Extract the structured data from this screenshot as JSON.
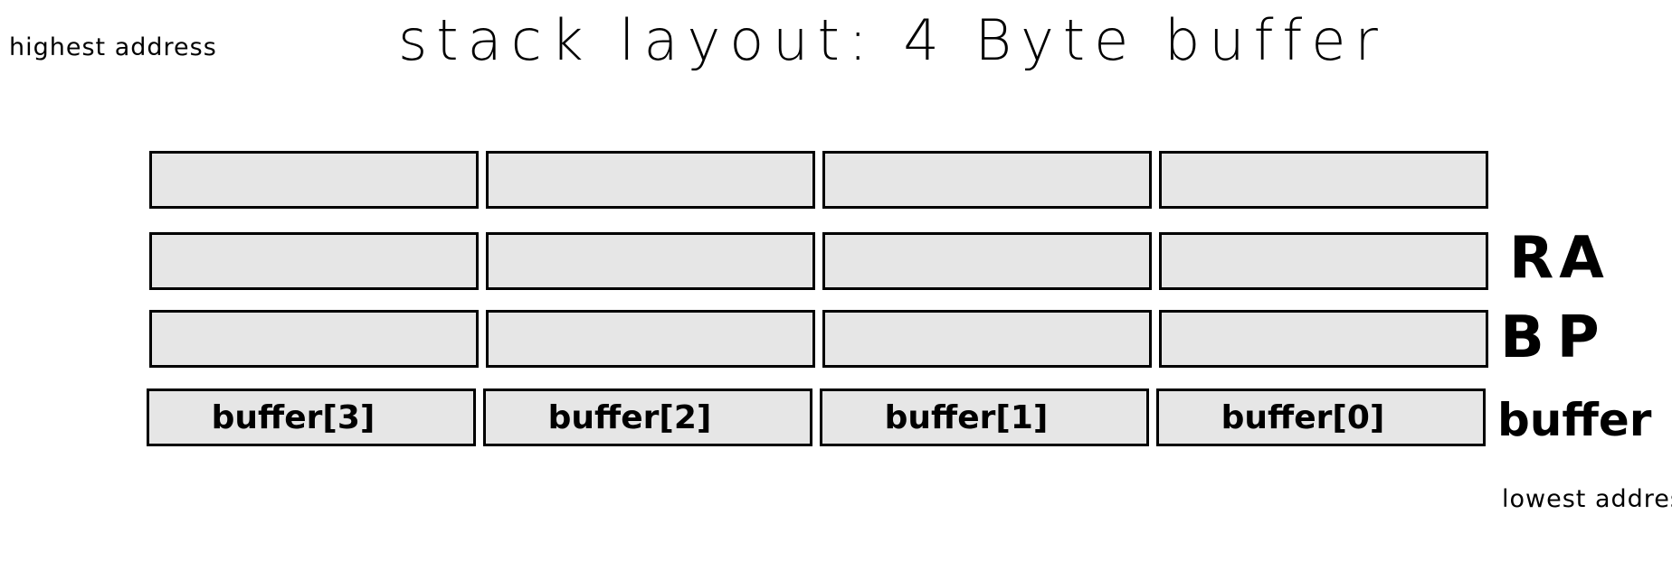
{
  "title": "stack layout: 4 Byte buffer",
  "notes": {
    "highest_address": "highest address",
    "lowest_address": "lowest address"
  },
  "rows": [
    {
      "label": "",
      "cells": [
        "",
        "",
        "",
        ""
      ]
    },
    {
      "label": "RA",
      "cells": [
        "",
        "",
        "",
        ""
      ]
    },
    {
      "label": "BP",
      "cells": [
        "",
        "",
        "",
        ""
      ]
    },
    {
      "label": "buffer",
      "cells": [
        "buffer[3]",
        "buffer[2]",
        "buffer[1]",
        "buffer[0]"
      ]
    }
  ],
  "colors": {
    "cell_fill": "#e6e6e6",
    "cell_border": "#000000",
    "text": "#000000",
    "background": "#ffffff"
  }
}
